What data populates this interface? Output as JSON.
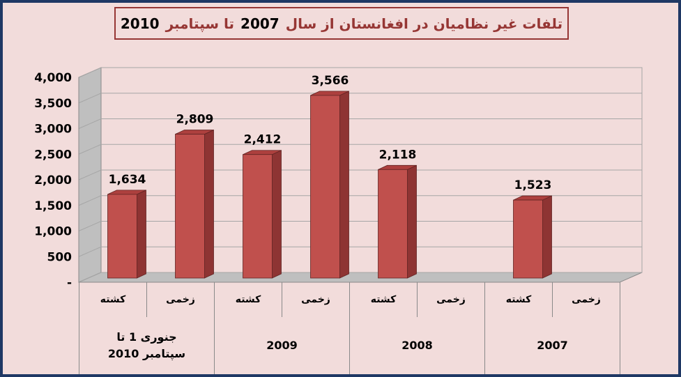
{
  "window": {
    "background": "#F2DCDB",
    "border_color": "#1F3864"
  },
  "title": {
    "text_main": "تلفات غیر نظامیان در افغانستان از سال",
    "year_start": "2007",
    "text_mid": "تا سپتامبر",
    "year_end": "2010",
    "full": "تلفات غیر نظامیان در افغانستان از سال 2007 تا سپتامبر 2010"
  },
  "chart_data": {
    "type": "bar",
    "style": "3d-column",
    "title": "تلفات غیر نظامیان در افغانستان از سال 2007 تا سپتامبر 2010",
    "ylim": [
      0,
      4000
    ],
    "grid": true,
    "legend": "none",
    "bar_color": "#C0504D",
    "bar_side_color": "#8E3433",
    "bar_top_color": "#AD403E",
    "wall_color": "#BFBFBF",
    "plot_bg": "#F2DCDB",
    "y_ticks": [
      {
        "value": 4000,
        "label": "4,000"
      },
      {
        "value": 3500,
        "label": "3,500"
      },
      {
        "value": 3000,
        "label": "3,000"
      },
      {
        "value": 2500,
        "label": "2,500"
      },
      {
        "value": 2000,
        "label": "2,000"
      },
      {
        "value": 1500,
        "label": "1,500"
      },
      {
        "value": 1000,
        "label": "1,000"
      },
      {
        "value": 500,
        "label": "500"
      },
      {
        "value": 0,
        "label": "-"
      }
    ],
    "groups": [
      {
        "label": "جنوری 1 تا سپتامبر 2010",
        "bars": [
          {
            "cat": "کشته",
            "value": 1634,
            "label": "1,634"
          },
          {
            "cat": "زخمی",
            "value": 2809,
            "label": "2,809"
          }
        ]
      },
      {
        "label": "2009",
        "bars": [
          {
            "cat": "کشته",
            "value": 2412,
            "label": "2,412"
          },
          {
            "cat": "زخمی",
            "value": 3566,
            "label": "3,566"
          }
        ]
      },
      {
        "label": "2008",
        "bars": [
          {
            "cat": "کشته",
            "value": 2118,
            "label": "2,118"
          },
          {
            "cat": "زخمی",
            "value": null,
            "label": ""
          }
        ]
      },
      {
        "label": "2007",
        "bars": [
          {
            "cat": "کشته",
            "value": 1523,
            "label": "1,523"
          },
          {
            "cat": "زخمی",
            "value": null,
            "label": ""
          }
        ]
      }
    ]
  }
}
